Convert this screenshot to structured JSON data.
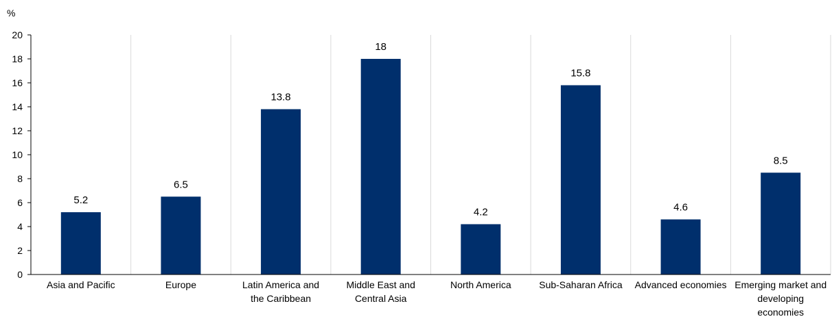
{
  "chart_data": {
    "type": "bar",
    "title": "",
    "xlabel": "",
    "ylabel": "%",
    "ylim": [
      0,
      20
    ],
    "yticks": [
      0,
      2,
      4,
      6,
      8,
      10,
      12,
      14,
      16,
      18,
      20
    ],
    "grid": "vertical separators between categories",
    "categories": [
      [
        "Asia and Pacific"
      ],
      [
        "Europe"
      ],
      [
        "Latin America and",
        "the Caribbean"
      ],
      [
        "Middle East and",
        "Central Asia"
      ],
      [
        "North America"
      ],
      [
        "Sub-Saharan Africa"
      ],
      [
        "Advanced economies"
      ],
      [
        "Emerging market and",
        "developing",
        "economies"
      ]
    ],
    "values": [
      5.2,
      6.5,
      13.8,
      18,
      4.2,
      15.8,
      4.6,
      8.5
    ],
    "value_labels": [
      "5.2",
      "6.5",
      "13.8",
      "18",
      "4.2",
      "15.8",
      "4.6",
      "8.5"
    ],
    "bar_color": "#002F6C",
    "grid_color": "#D9D9D9",
    "axis_color": "#000000"
  }
}
